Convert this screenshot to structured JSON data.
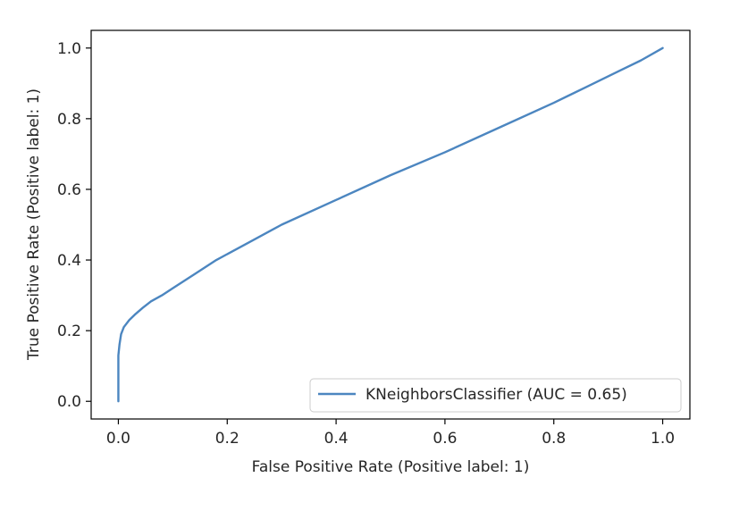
{
  "chart_data": {
    "type": "line",
    "title": "",
    "xlabel": "False Positive Rate (Positive label: 1)",
    "ylabel": "True Positive Rate (Positive label: 1)",
    "xlim": [
      -0.05,
      1.05
    ],
    "ylim": [
      -0.05,
      1.05
    ],
    "xticks": [
      0.0,
      0.2,
      0.4,
      0.6,
      0.8,
      1.0
    ],
    "xtick_labels": [
      "0.0",
      "0.2",
      "0.4",
      "0.6",
      "0.8",
      "1.0"
    ],
    "yticks": [
      0.0,
      0.2,
      0.4,
      0.6,
      0.8,
      1.0
    ],
    "ytick_labels": [
      "0.0",
      "0.2",
      "0.4",
      "0.6",
      "0.8",
      "1.0"
    ],
    "grid": false,
    "legend_position": "lower-right",
    "series": [
      {
        "name": "KNeighborsClassifier (AUC = 0.65)",
        "color": "#4c86c0",
        "x": [
          0.0,
          0.0,
          0.002,
          0.005,
          0.01,
          0.02,
          0.03,
          0.045,
          0.06,
          0.08,
          0.1,
          0.14,
          0.18,
          0.24,
          0.3,
          0.4,
          0.5,
          0.6,
          0.7,
          0.8,
          0.86,
          0.92,
          0.96,
          1.0
        ],
        "y": [
          0.0,
          0.13,
          0.16,
          0.19,
          0.21,
          0.23,
          0.245,
          0.265,
          0.283,
          0.3,
          0.32,
          0.36,
          0.4,
          0.45,
          0.5,
          0.57,
          0.64,
          0.705,
          0.775,
          0.845,
          0.89,
          0.935,
          0.965,
          1.0
        ]
      }
    ]
  }
}
